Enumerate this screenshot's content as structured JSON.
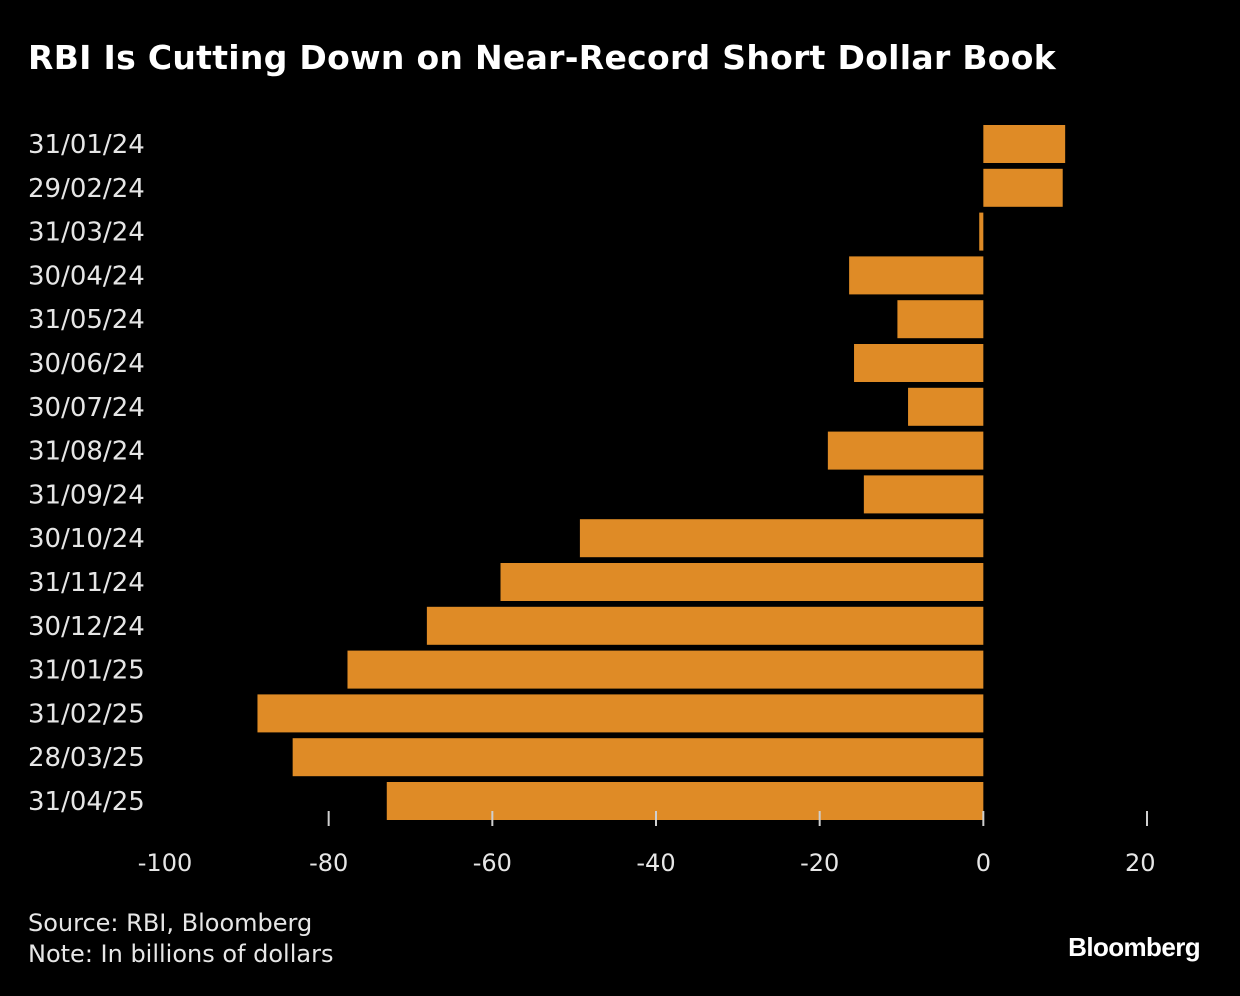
{
  "chart_data": {
    "type": "bar",
    "orientation": "horizontal",
    "title": "RBI Is Cutting Down on Near-Record Short Dollar Book",
    "categories": [
      "31/01/24",
      "29/02/24",
      "31/03/24",
      "30/04/24",
      "31/05/24",
      "30/06/24",
      "30/07/24",
      "31/08/24",
      "31/09/24",
      "30/10/24",
      "31/11/24",
      "30/12/24",
      "31/01/25",
      "31/02/25",
      "28/03/25",
      "31/04/25"
    ],
    "values": [
      10.0,
      9.7,
      -0.5,
      -16.4,
      -10.5,
      -15.8,
      -9.2,
      -19.0,
      -14.6,
      -49.3,
      -59.0,
      -68.0,
      -77.7,
      -88.7,
      -84.4,
      -72.9
    ],
    "xlim": [
      -100,
      20
    ],
    "xticks": [
      -100,
      -80,
      -60,
      -40,
      -20,
      0,
      20
    ],
    "xtick_labels": [
      "-100",
      "-80",
      "-60",
      "-40",
      "-20",
      "0",
      "20"
    ],
    "bar_color": "#df8b26",
    "background": "#000000",
    "grid": false,
    "legend": "none"
  },
  "footer": {
    "source": "Source: RBI, Bloomberg",
    "note": "Note: In billions of dollars",
    "brand": "Bloomberg"
  }
}
